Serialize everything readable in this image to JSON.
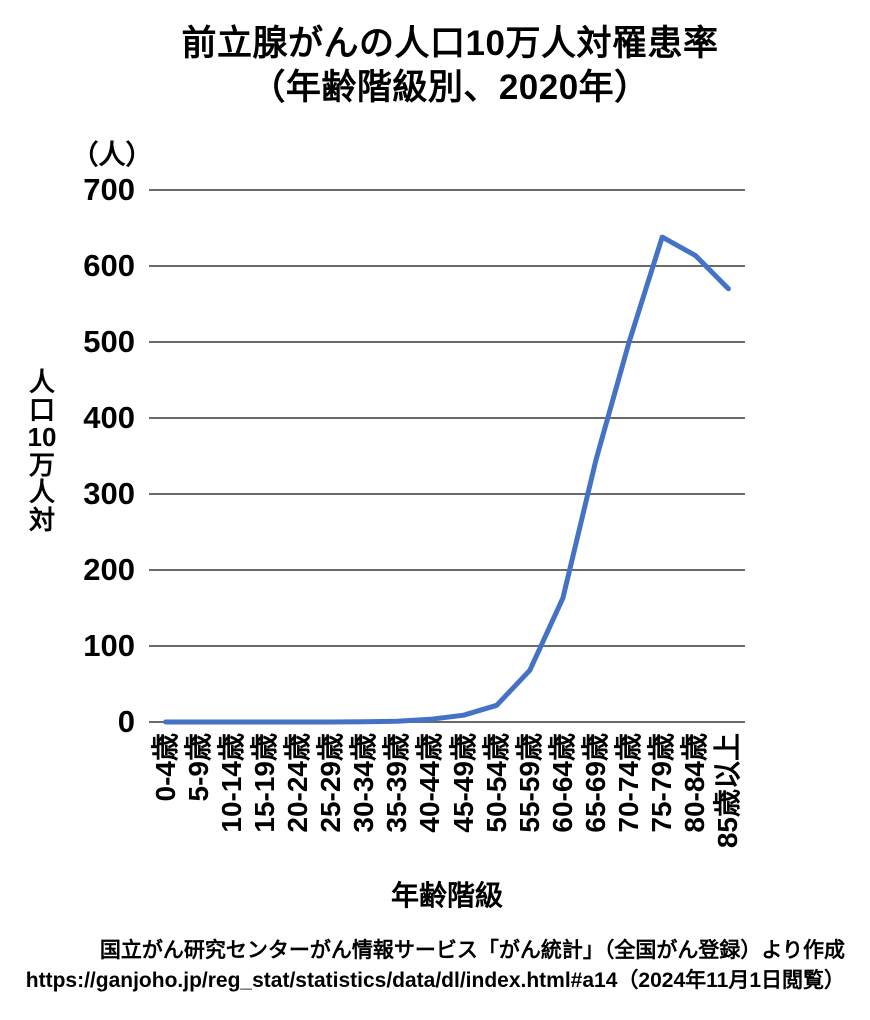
{
  "title": {
    "line1": "前立腺がんの人口10万人対罹患率",
    "line2": "（年齢階級別、2020年）"
  },
  "chart_data": {
    "type": "line",
    "title": "前立腺がんの人口10万人対罹患率（年齢階級別、2020年）",
    "y_unit_label": "（人）",
    "ylabel": "人口10万人対",
    "ylabel_vertical_lines": [
      "人",
      "口",
      "10",
      "万",
      "人",
      "対"
    ],
    "xlabel": "年齢階級",
    "categories": [
      "0-4歳",
      "5-9歳",
      "10-14歳",
      "15-19歳",
      "20-24歳",
      "25-29歳",
      "30-34歳",
      "35-39歳",
      "40-44歳",
      "45-49歳",
      "50-54歳",
      "55-59歳",
      "60-64歳",
      "65-69歳",
      "70-74歳",
      "75-79歳",
      "80-84歳",
      "85歳以上"
    ],
    "values": [
      0,
      0,
      0,
      0,
      0,
      0,
      0.2,
      0.9,
      3.5,
      9,
      22,
      68,
      163,
      345,
      500,
      638,
      614,
      570
    ],
    "ylim": [
      0,
      700
    ],
    "ytick_step": 100,
    "grid": true,
    "legend": "none",
    "line_color": "#4472C4",
    "grid_color": "#6A6A6A",
    "text_color": "#000000"
  },
  "source": {
    "line1": "国立がん研究センターがん情報サービス「がん統計」（全国がん登録）より作成",
    "line2": "https://ganjoho.jp/reg_stat/statistics/data/dl/index.html#a14（2024年11月1日閲覧）"
  }
}
